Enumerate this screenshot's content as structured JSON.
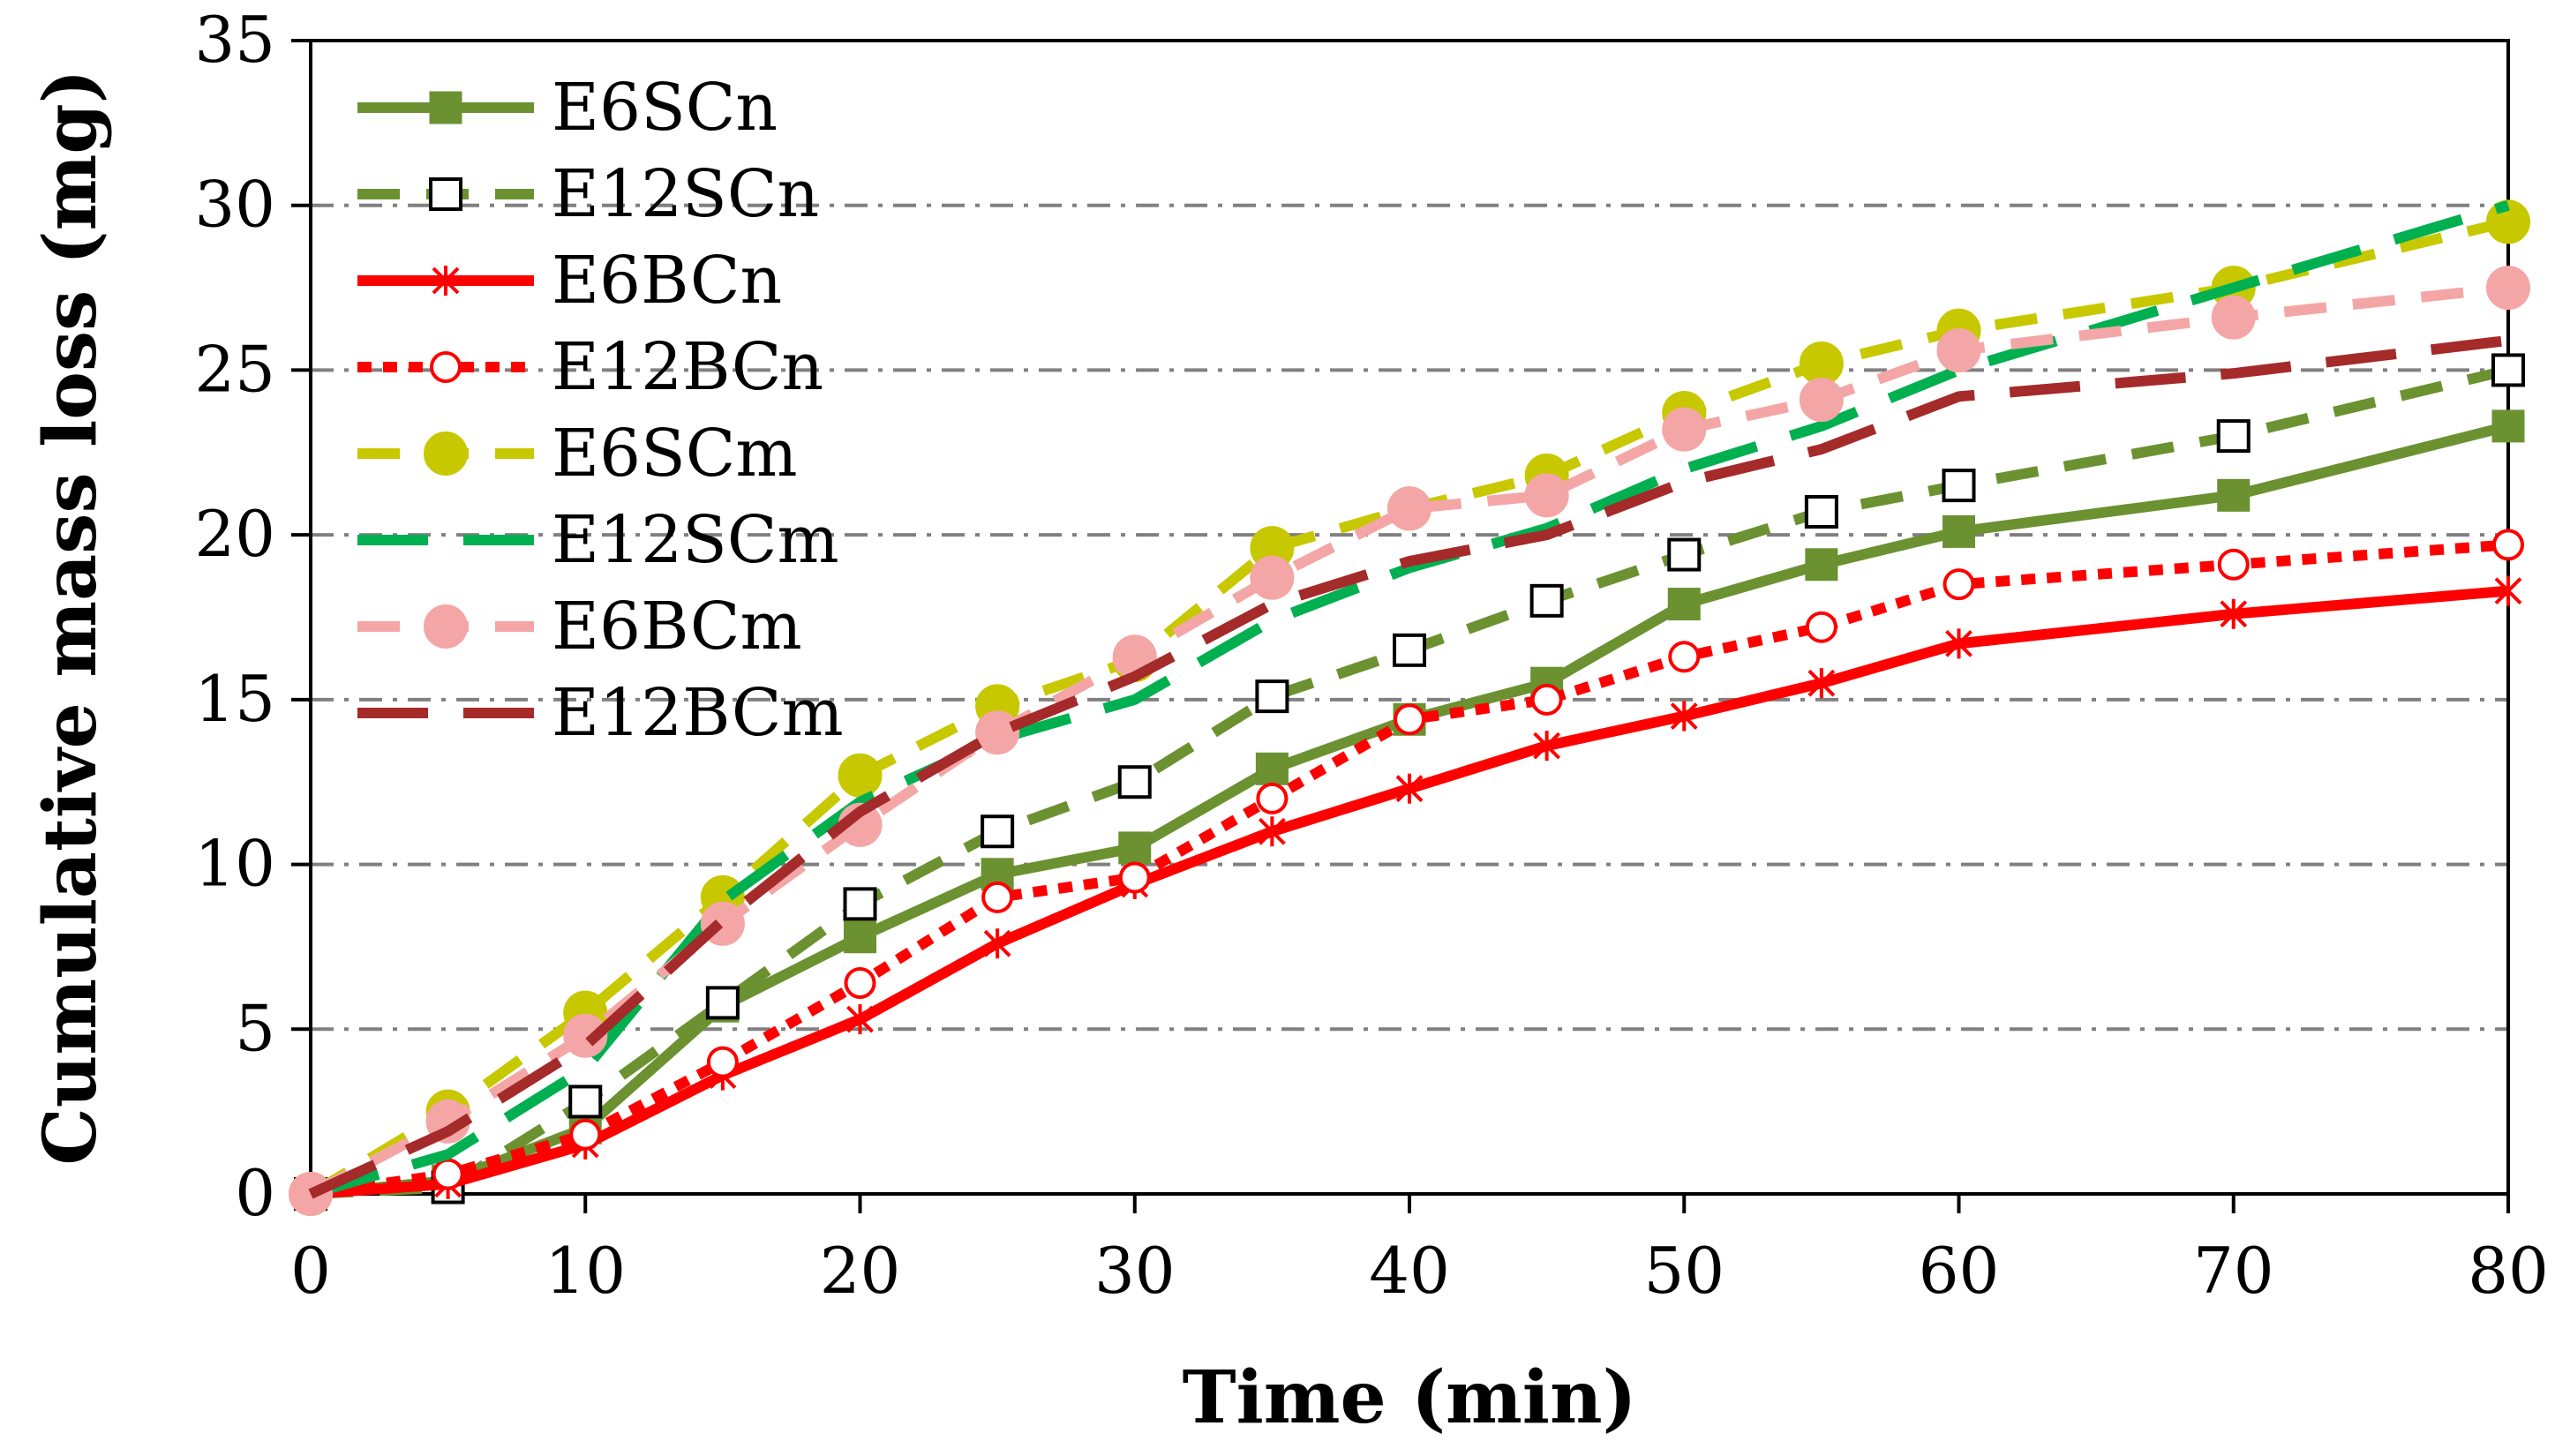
{
  "chart_data": {
    "type": "line",
    "title": "",
    "xlabel": "Time (min)",
    "ylabel": "Cumulative mass loss (mg)",
    "xlim": [
      0,
      80
    ],
    "ylim": [
      0,
      35
    ],
    "xticks": [
      0,
      10,
      20,
      30,
      40,
      50,
      60,
      70,
      80
    ],
    "yticks": [
      0,
      5,
      10,
      15,
      20,
      25,
      30,
      35
    ],
    "grid": "horizontal dash-dot",
    "legend_position": "top-left",
    "x": [
      0,
      5,
      10,
      15,
      20,
      25,
      30,
      35,
      40,
      45,
      50,
      55,
      60,
      70,
      80
    ],
    "series": [
      {
        "name": "E6SCn",
        "color": "#6B9131",
        "line": "solid",
        "marker": "filled-square",
        "values": [
          0,
          0.4,
          2.0,
          5.7,
          7.8,
          9.7,
          10.5,
          12.9,
          14.4,
          15.5,
          17.9,
          19.1,
          20.1,
          21.2,
          23.3
        ]
      },
      {
        "name": "E12SCn",
        "color": "#6B9131",
        "line": "dash",
        "marker": "open-square",
        "values": [
          0,
          0.2,
          2.8,
          5.8,
          8.8,
          11.0,
          12.5,
          15.1,
          16.5,
          18.0,
          19.4,
          20.7,
          21.5,
          23.0,
          25.0
        ]
      },
      {
        "name": "E6BCn",
        "color": "#FF0000",
        "line": "solid",
        "marker": "star",
        "values": [
          0,
          0.3,
          1.5,
          3.6,
          5.3,
          7.6,
          9.4,
          11.0,
          12.3,
          13.6,
          14.5,
          15.5,
          16.7,
          17.6,
          18.3
        ]
      },
      {
        "name": "E12BCn",
        "color": "#FF0000",
        "line": "dot",
        "marker": "open-circle",
        "values": [
          0,
          0.6,
          1.8,
          4.0,
          6.4,
          9.0,
          9.6,
          12.0,
          14.4,
          15.0,
          16.3,
          17.2,
          18.5,
          19.1,
          19.7
        ]
      },
      {
        "name": "E6SCm",
        "color": "#C8C800",
        "line": "dash",
        "marker": "filled-circle",
        "values": [
          0,
          2.5,
          5.5,
          9.0,
          12.7,
          14.8,
          16.2,
          19.6,
          20.8,
          21.8,
          23.7,
          25.2,
          26.2,
          27.5,
          29.5
        ]
      },
      {
        "name": "E12SCm",
        "color": "#00B050",
        "line": "longdash",
        "marker": "none",
        "values": [
          0,
          1.2,
          3.8,
          8.9,
          11.9,
          13.8,
          15.0,
          17.4,
          19.0,
          20.2,
          22.0,
          23.3,
          25.0,
          27.5,
          30.0
        ]
      },
      {
        "name": "E6BCm",
        "color": "#F4A6A6",
        "line": "dash",
        "marker": "filled-circle",
        "values": [
          0,
          2.2,
          4.8,
          8.2,
          11.2,
          14.0,
          16.3,
          18.7,
          20.8,
          21.2,
          23.2,
          24.1,
          25.6,
          26.6,
          27.5
        ]
      },
      {
        "name": "E12BCm",
        "color": "#A52A2A",
        "line": "longdash",
        "marker": "none",
        "values": [
          0,
          1.9,
          4.5,
          8.3,
          11.6,
          14.0,
          15.7,
          17.9,
          19.2,
          20.0,
          21.6,
          22.6,
          24.2,
          24.9,
          25.9
        ]
      }
    ]
  }
}
